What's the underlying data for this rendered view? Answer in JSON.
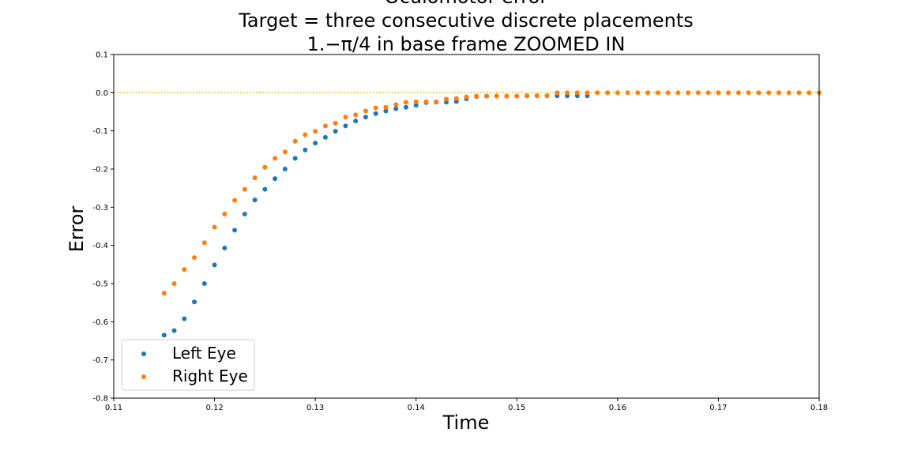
{
  "chart_data": {
    "type": "scatter",
    "title": "Oculomotor error",
    "subtitle": [
      "Target = three consecutive discrete placements",
      "1.−π/4 in base frame ZOOMED IN"
    ],
    "xlabel": "Time",
    "ylabel": "Error",
    "xlim": [
      0.11,
      0.18
    ],
    "ylim": [
      -0.8,
      0.1
    ],
    "xticks": [
      "0.11",
      "0.12",
      "0.13",
      "0.14",
      "0.15",
      "0.16",
      "0.17",
      "0.18"
    ],
    "yticks": [
      "0.1",
      "0.0",
      "-0.1",
      "-0.2",
      "-0.3",
      "-0.4",
      "-0.5",
      "-0.6",
      "-0.7",
      "-0.8"
    ],
    "grid": false,
    "legend_position": "lower-left",
    "reference_line": {
      "y": 0.0,
      "style": "dotted",
      "color": "#bfbf00"
    },
    "series": [
      {
        "name": "Left Eye",
        "color": "#1f77b4",
        "x": [
          0.115,
          0.116,
          0.117,
          0.118,
          0.119,
          0.12,
          0.121,
          0.122,
          0.123,
          0.124,
          0.125,
          0.126,
          0.127,
          0.128,
          0.129,
          0.13,
          0.131,
          0.132,
          0.133,
          0.134,
          0.135,
          0.136,
          0.137,
          0.138,
          0.139,
          0.14,
          0.141,
          0.142,
          0.143,
          0.144,
          0.145,
          0.146,
          0.147,
          0.148,
          0.149,
          0.15,
          0.151,
          0.152,
          0.153,
          0.154,
          0.155,
          0.156,
          0.157
        ],
        "y": [
          -0.635,
          -0.623,
          -0.592,
          -0.548,
          -0.5,
          -0.451,
          -0.407,
          -0.36,
          -0.318,
          -0.281,
          -0.253,
          -0.225,
          -0.2,
          -0.172,
          -0.15,
          -0.132,
          -0.117,
          -0.101,
          -0.087,
          -0.074,
          -0.064,
          -0.055,
          -0.048,
          -0.042,
          -0.038,
          -0.033,
          -0.026,
          -0.025,
          -0.025,
          -0.023,
          -0.016,
          -0.01,
          -0.009,
          -0.009,
          -0.009,
          -0.009,
          -0.008,
          -0.008,
          -0.008,
          -0.008,
          -0.008,
          -0.008,
          -0.008
        ]
      },
      {
        "name": "Right Eye",
        "color": "#ff7f0e",
        "x": [
          0.115,
          0.116,
          0.117,
          0.118,
          0.119,
          0.12,
          0.121,
          0.122,
          0.123,
          0.124,
          0.125,
          0.126,
          0.127,
          0.128,
          0.129,
          0.13,
          0.131,
          0.132,
          0.133,
          0.134,
          0.135,
          0.136,
          0.137,
          0.138,
          0.139,
          0.14,
          0.141,
          0.142,
          0.143,
          0.144,
          0.145,
          0.146,
          0.147,
          0.148,
          0.149,
          0.15,
          0.151,
          0.152,
          0.153,
          0.154,
          0.155,
          0.156,
          0.157,
          0.158,
          0.159,
          0.16,
          0.161,
          0.162,
          0.163,
          0.164,
          0.165,
          0.166,
          0.167,
          0.168,
          0.169,
          0.17,
          0.171,
          0.172,
          0.173,
          0.174,
          0.175,
          0.176,
          0.177,
          0.178,
          0.179,
          0.18
        ],
        "y": [
          -0.525,
          -0.5,
          -0.463,
          -0.432,
          -0.393,
          -0.352,
          -0.318,
          -0.282,
          -0.253,
          -0.223,
          -0.195,
          -0.172,
          -0.155,
          -0.127,
          -0.11,
          -0.101,
          -0.087,
          -0.08,
          -0.064,
          -0.058,
          -0.048,
          -0.04,
          -0.038,
          -0.031,
          -0.025,
          -0.024,
          -0.024,
          -0.024,
          -0.017,
          -0.015,
          -0.011,
          -0.009,
          -0.009,
          -0.009,
          -0.009,
          -0.009,
          -0.008,
          -0.008,
          -0.008,
          0.0,
          0.0,
          0.0,
          0.0,
          0.0,
          0.0,
          0.0,
          0.0,
          0.0,
          0.0,
          0.0,
          0.0,
          0.0,
          0.0,
          0.0,
          0.0,
          0.0,
          0.0,
          0.0,
          0.0,
          0.0,
          0.0,
          0.0,
          0.0,
          0.0,
          0.0,
          0.0
        ]
      }
    ]
  }
}
